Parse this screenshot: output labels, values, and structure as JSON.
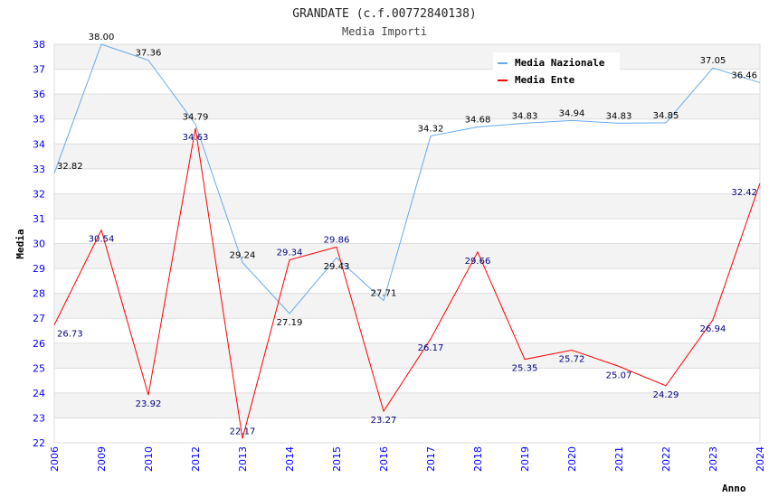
{
  "chart_data": {
    "type": "line",
    "title": "GRANDATE (c.f.00772840138)",
    "subtitle": "Media Importi",
    "xlabel": "Anno",
    "ylabel": "Media",
    "ylim": [
      22,
      38
    ],
    "yticks": [
      22,
      23,
      24,
      25,
      26,
      27,
      28,
      29,
      30,
      31,
      32,
      33,
      34,
      35,
      36,
      37,
      38
    ],
    "categories": [
      "2006",
      "2009",
      "2010",
      "2012",
      "2013",
      "2014",
      "2015",
      "2016",
      "2017",
      "2018",
      "2019",
      "2020",
      "2021",
      "2022",
      "2023",
      "2024"
    ],
    "legend_position": "top-right",
    "series": [
      {
        "name": "Media Nazionale",
        "color": "#66aaee",
        "label_color": "#000000",
        "values": [
          32.82,
          38.0,
          37.36,
          34.79,
          29.24,
          27.19,
          29.43,
          27.71,
          34.32,
          34.68,
          34.83,
          34.94,
          34.83,
          34.85,
          37.05,
          36.46
        ]
      },
      {
        "name": "Media Ente",
        "color": "#ff0000",
        "label_color": "#000080",
        "values": [
          26.73,
          30.54,
          23.92,
          34.63,
          22.17,
          29.34,
          29.86,
          23.27,
          26.17,
          29.66,
          25.35,
          25.72,
          25.07,
          24.29,
          26.94,
          32.42
        ]
      }
    ]
  }
}
